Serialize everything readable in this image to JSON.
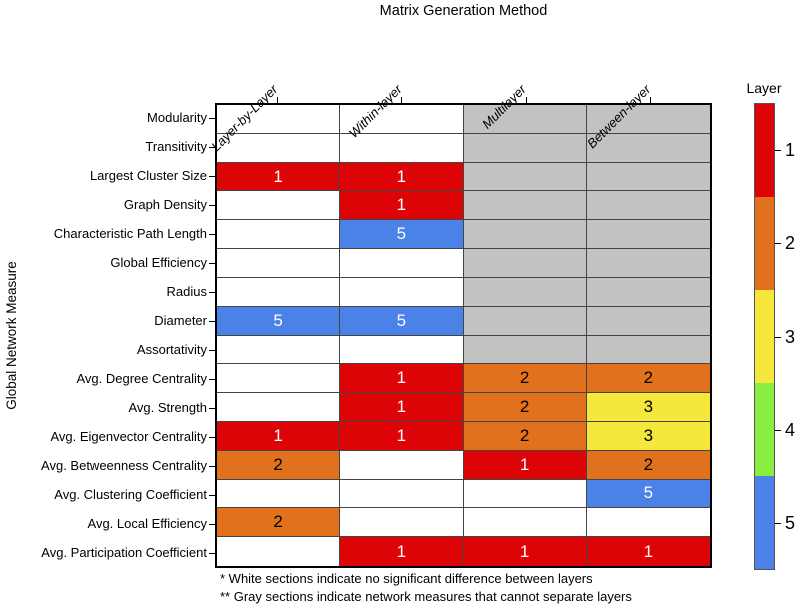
{
  "title": "Matrix Generation Method",
  "y_axis_label": "Global Network Measure",
  "legend": {
    "title": "Layer",
    "tick_labels": [
      "1",
      "2",
      "3",
      "4",
      "5"
    ]
  },
  "footnotes": [
    "* White sections indicate no significant difference between layers",
    "** Gray sections indicate network measures that cannot separate layers"
  ],
  "colors": {
    "layer": {
      "1": "#DC0407",
      "2": "#E2711E",
      "3": "#F6E73C",
      "4": "#88EE3F",
      "5": "#4B82E8"
    },
    "layer_text": {
      "1": "#FFFFFF",
      "2": "#000000",
      "3": "#000000",
      "4": "#000000",
      "5": "#FFFFFF"
    },
    "na_cell": "#C2C2C2",
    "empty_cell": "#FFFFFF"
  },
  "chart_data": {
    "type": "heatmap",
    "title": "Matrix Generation Method",
    "xlabel": "Matrix Generation Method",
    "ylabel": "Global Network Measure",
    "legend_title": "Layer",
    "legend_levels": [
      1,
      2,
      3,
      4,
      5
    ],
    "columns": [
      "Layer-by-Layer",
      "Within-layer",
      "Multilayer",
      "Between-layer"
    ],
    "rows": [
      "Modularity",
      "Transitivity",
      "Largest Cluster Size",
      "Graph Density",
      "Characteristic Path Length",
      "Global Efficiency",
      "Radius",
      "Diameter",
      "Assortativity",
      "Avg. Degree Centrality",
      "Avg. Strength",
      "Avg. Eigenvector Centrality",
      "Avg. Betweenness Centrality",
      "Avg. Clustering Coefficient",
      "Avg. Local Efficiency",
      "Avg. Participation Coefficient"
    ],
    "cells": [
      [
        null,
        null,
        "NA",
        "NA"
      ],
      [
        null,
        null,
        "NA",
        "NA"
      ],
      [
        1,
        1,
        "NA",
        "NA"
      ],
      [
        null,
        1,
        "NA",
        "NA"
      ],
      [
        null,
        5,
        "NA",
        "NA"
      ],
      [
        null,
        null,
        "NA",
        "NA"
      ],
      [
        null,
        null,
        "NA",
        "NA"
      ],
      [
        5,
        5,
        "NA",
        "NA"
      ],
      [
        null,
        null,
        "NA",
        "NA"
      ],
      [
        null,
        1,
        2,
        2
      ],
      [
        null,
        1,
        2,
        3
      ],
      [
        1,
        1,
        2,
        3
      ],
      [
        2,
        null,
        1,
        2
      ],
      [
        null,
        null,
        null,
        5
      ],
      [
        2,
        null,
        null,
        null
      ],
      [
        null,
        1,
        1,
        1
      ]
    ]
  }
}
